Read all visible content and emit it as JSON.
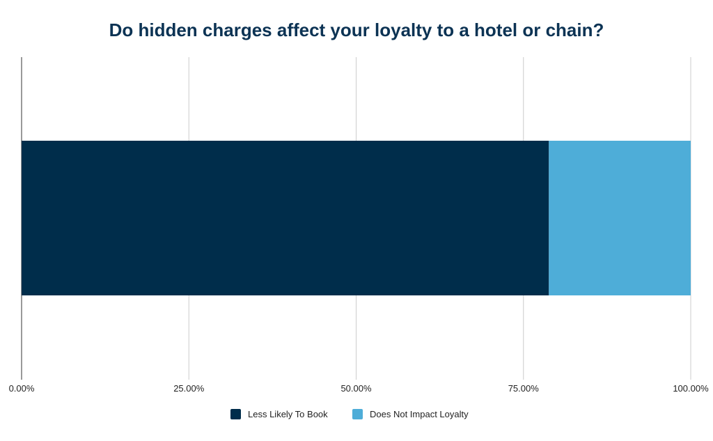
{
  "chart_data": {
    "type": "bar",
    "orientation": "horizontal",
    "stacked": true,
    "title": "Do hidden charges affect your loyalty to a hotel or chain?",
    "xlabel": "",
    "ylabel": "",
    "categories": [
      ""
    ],
    "xlim": [
      0,
      100
    ],
    "x_ticks": [
      "0.00%",
      "25.00%",
      "50.00%",
      "75.00%",
      "100.00%"
    ],
    "grid": true,
    "legend_position": "bottom",
    "series": [
      {
        "name": "Less Likely To Book",
        "values": [
          78.8
        ],
        "color": "#002d4b"
      },
      {
        "name": "Does Not Impact Loyalty",
        "values": [
          21.2
        ],
        "color": "#4eadd8"
      }
    ]
  }
}
